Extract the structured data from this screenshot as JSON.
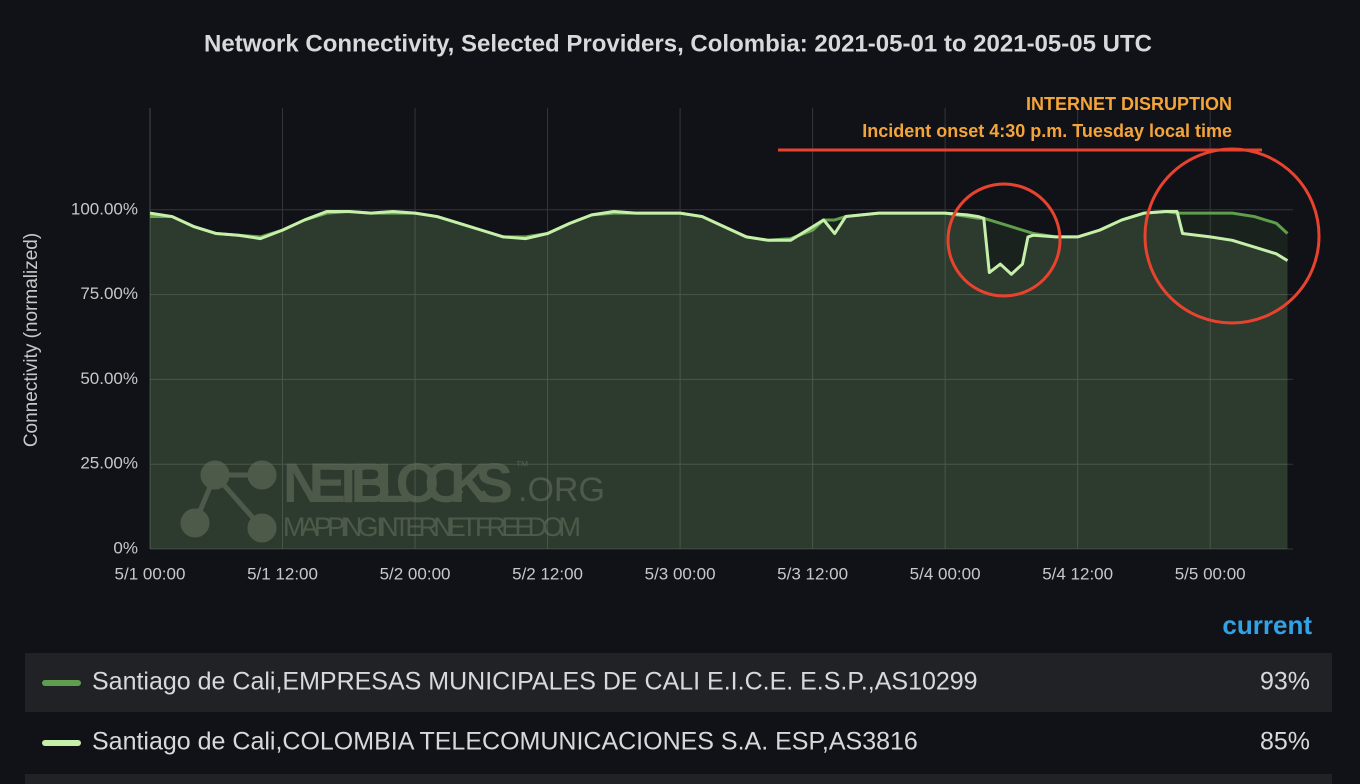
{
  "chart_data": {
    "type": "line",
    "title": "Network Connectivity, Selected Providers, Colombia: 2021-05-01 to 2021-05-05 UTC",
    "y_label": "Connectivity (normalized)",
    "annotations": [
      "INTERNET DISRUPTION",
      "Incident onset 4:30 p.m. Tuesday local time"
    ],
    "watermark": {
      "name": "NETBLOCKS",
      "tm": "™",
      "suffix": ".ORG",
      "tagline": "MAPPING INTERNET FREEDOM"
    },
    "legend_column": "current",
    "x": [
      "5/1 00:00",
      "5/1 02:00",
      "5/1 04:00",
      "5/1 06:00",
      "5/1 08:00",
      "5/1 10:00",
      "5/1 12:00",
      "5/1 14:00",
      "5/1 16:00",
      "5/1 18:00",
      "5/1 20:00",
      "5/1 22:00",
      "5/2 00:00",
      "5/2 02:00",
      "5/2 04:00",
      "5/2 06:00",
      "5/2 08:00",
      "5/2 10:00",
      "5/2 12:00",
      "5/2 14:00",
      "5/2 16:00",
      "5/2 18:00",
      "5/2 20:00",
      "5/2 22:00",
      "5/3 00:00",
      "5/3 02:00",
      "5/3 04:00",
      "5/3 06:00",
      "5/3 08:00",
      "5/3 10:00",
      "5/3 12:00",
      "5/3 13:00",
      "5/3 14:00",
      "5/3 15:00",
      "5/3 18:00",
      "5/3 22:00",
      "5/4 00:00",
      "5/4 02:00",
      "5/4 03:00",
      "5/4 03:30",
      "5/4 04:00",
      "5/4 05:00",
      "5/4 06:00",
      "5/4 07:00",
      "5/4 07:30",
      "5/4 08:00",
      "5/4 10:00",
      "5/4 12:00",
      "5/4 14:00",
      "5/4 16:00",
      "5/4 18:00",
      "5/4 20:00",
      "5/4 21:00",
      "5/4 21:30",
      "5/5 00:00",
      "5/5 02:00",
      "5/5 04:00",
      "5/5 06:00",
      "5/5 07:00"
    ],
    "series": [
      {
        "name": "Santiago de Cali,EMPRESAS MUNICIPALES DE CALI E.I.C.E. E.S.P.,AS10299",
        "color": "#5e9e4c",
        "current": 93,
        "current_label": "93%",
        "values": [
          98,
          98,
          95,
          93,
          92.5,
          92,
          94,
          97,
          99,
          99.5,
          99,
          99,
          99,
          98,
          96,
          94,
          92,
          92,
          93,
          96,
          98.5,
          99,
          99,
          99,
          99,
          98,
          95,
          92,
          91,
          91.5,
          94,
          97,
          97,
          98,
          99,
          99,
          99,
          98,
          97.5,
          97.5,
          97,
          96,
          95,
          94,
          93.5,
          93,
          92,
          92,
          94,
          97,
          99,
          99.5,
          99,
          99,
          99,
          99,
          98,
          96,
          93
        ]
      },
      {
        "name": "Santiago de Cali,COLOMBIA TELECOMUNICACIONES S.A. ESP,AS3816",
        "color": "#c6efaa",
        "current": 85,
        "current_label": "85%",
        "values": [
          99,
          98,
          95,
          93,
          92.5,
          91.5,
          94,
          97,
          99.5,
          99.5,
          99,
          99.5,
          99,
          98,
          96,
          94,
          92,
          91.5,
          93,
          96,
          98.5,
          99.5,
          99,
          99,
          99,
          98,
          95,
          92,
          91,
          91,
          95,
          97,
          93,
          98,
          99,
          99,
          99,
          98.5,
          98,
          97.5,
          81.5,
          84,
          81,
          84,
          92,
          92.5,
          92,
          92,
          94,
          97,
          99,
          99.5,
          99.5,
          93,
          92,
          91,
          89,
          87,
          85
        ]
      }
    ],
    "xlim": [
      "5/1 00:00",
      "5/5 07:30"
    ],
    "xticks": [
      "5/1 00:00",
      "5/1 12:00",
      "5/2 00:00",
      "5/2 12:00",
      "5/3 00:00",
      "5/3 12:00",
      "5/4 00:00",
      "5/4 12:00",
      "5/5 00:00"
    ],
    "ylim": [
      0,
      130
    ],
    "yticks": [
      {
        "value": 0,
        "label": "0%"
      },
      {
        "value": 25,
        "label": "25.00%"
      },
      {
        "value": 50,
        "label": "50.00%"
      },
      {
        "value": 75,
        "label": "75.00%"
      },
      {
        "value": 100,
        "label": "100.00%"
      }
    ],
    "grid": true
  }
}
